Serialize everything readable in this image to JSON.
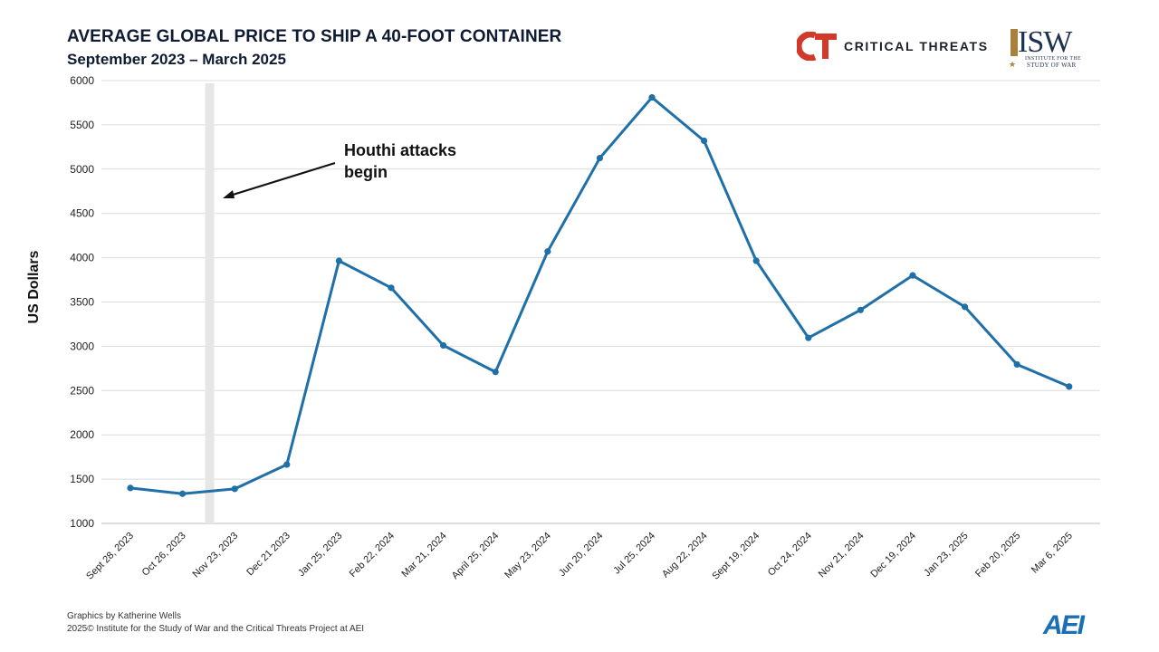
{
  "header": {
    "title": "AVERAGE GLOBAL PRICE TO SHIP A 40-FOOT CONTAINER",
    "subtitle": "September 2023 – March 2025"
  },
  "logos": {
    "ct_text": "CRITICAL THREATS",
    "ct_color": "#d13a2a",
    "isw_letters": "ISW",
    "isw_sub": "INSTITUTE FOR THE",
    "isw_sub2": "STUDY OF WAR",
    "aei_text": "AEI",
    "aei_color": "#1b6fb5"
  },
  "annotation": {
    "line1": "Houthi attacks",
    "line2": "begin"
  },
  "footer": {
    "credit_line1": "Graphics by Katherine Wells",
    "credit_line2": "2025© Institute for the Study of War and the Critical Threats Project at AEI"
  },
  "chart_data": {
    "type": "line",
    "title": "AVERAGE GLOBAL PRICE TO SHIP A 40-FOOT CONTAINER",
    "subtitle": "September 2023 – March 2025",
    "xlabel": "",
    "ylabel": "US Dollars",
    "ylim": [
      1000,
      6000
    ],
    "yticks": [
      1000,
      1500,
      2000,
      2500,
      3000,
      3500,
      4000,
      4500,
      5000,
      5500,
      6000
    ],
    "grid": "horizontal",
    "line_color": "#1f6fa8",
    "categories": [
      "Sept 28, 2023",
      "Oct 26, 2023",
      "Nov 23, 2023",
      "Dec 21 2023",
      "Jan 25, 2023",
      "Feb 22, 2024",
      "Mar 21, 2024",
      "April 25, 2024",
      "May 23, 2024",
      "Jun 20, 2024",
      "Jul 25, 2024",
      "Aug 22, 2024",
      "Sept 19, 2024",
      "Oct 24, 2024",
      "Nov 21, 2024",
      "Dec 19, 2024",
      "Jan 23, 2025",
      "Feb 20, 2025",
      "Mar 6, 2025"
    ],
    "values": [
      1400,
      1335,
      1390,
      1665,
      3965,
      3660,
      3010,
      2710,
      4070,
      5125,
      5810,
      5320,
      3965,
      3095,
      3410,
      3800,
      3445,
      2795,
      2545
    ],
    "event_marker": {
      "between_index": [
        1,
        2
      ],
      "fraction": 0.52,
      "label": "Houthi attacks begin"
    }
  }
}
